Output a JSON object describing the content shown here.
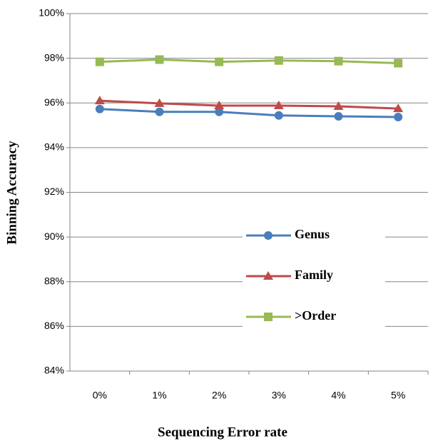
{
  "chart_data": {
    "type": "line",
    "x_label": "Sequencing Error rate",
    "y_label": "Binning Accuracy",
    "categories": [
      "0%",
      "1%",
      "2%",
      "3%",
      "4%",
      "5%"
    ],
    "series": [
      {
        "name": "Genus",
        "color": "#4a7ebb",
        "marker": "circle",
        "values": [
          95.73,
          95.6,
          95.6,
          95.44,
          95.4,
          95.37
        ]
      },
      {
        "name": "Family",
        "color": "#be4b48",
        "marker": "triangle",
        "values": [
          96.1,
          95.98,
          95.88,
          95.88,
          95.85,
          95.75
        ]
      },
      {
        "name": ">Order",
        "color": "#98b954",
        "marker": "square",
        "values": [
          97.84,
          97.94,
          97.84,
          97.9,
          97.87,
          97.78
        ]
      }
    ],
    "ylim": [
      84,
      100
    ],
    "yticks": [
      {
        "value": 84,
        "label": "84%"
      },
      {
        "value": 86,
        "label": "86%"
      },
      {
        "value": 88,
        "label": "88%"
      },
      {
        "value": 90,
        "label": "90%"
      },
      {
        "value": 92,
        "label": "92%"
      },
      {
        "value": 94,
        "label": "94%"
      },
      {
        "value": 96,
        "label": "96%"
      },
      {
        "value": 98,
        "label": "98%"
      },
      {
        "value": 100,
        "label": "100%"
      }
    ],
    "grid": true,
    "legend_position": "center-right"
  }
}
